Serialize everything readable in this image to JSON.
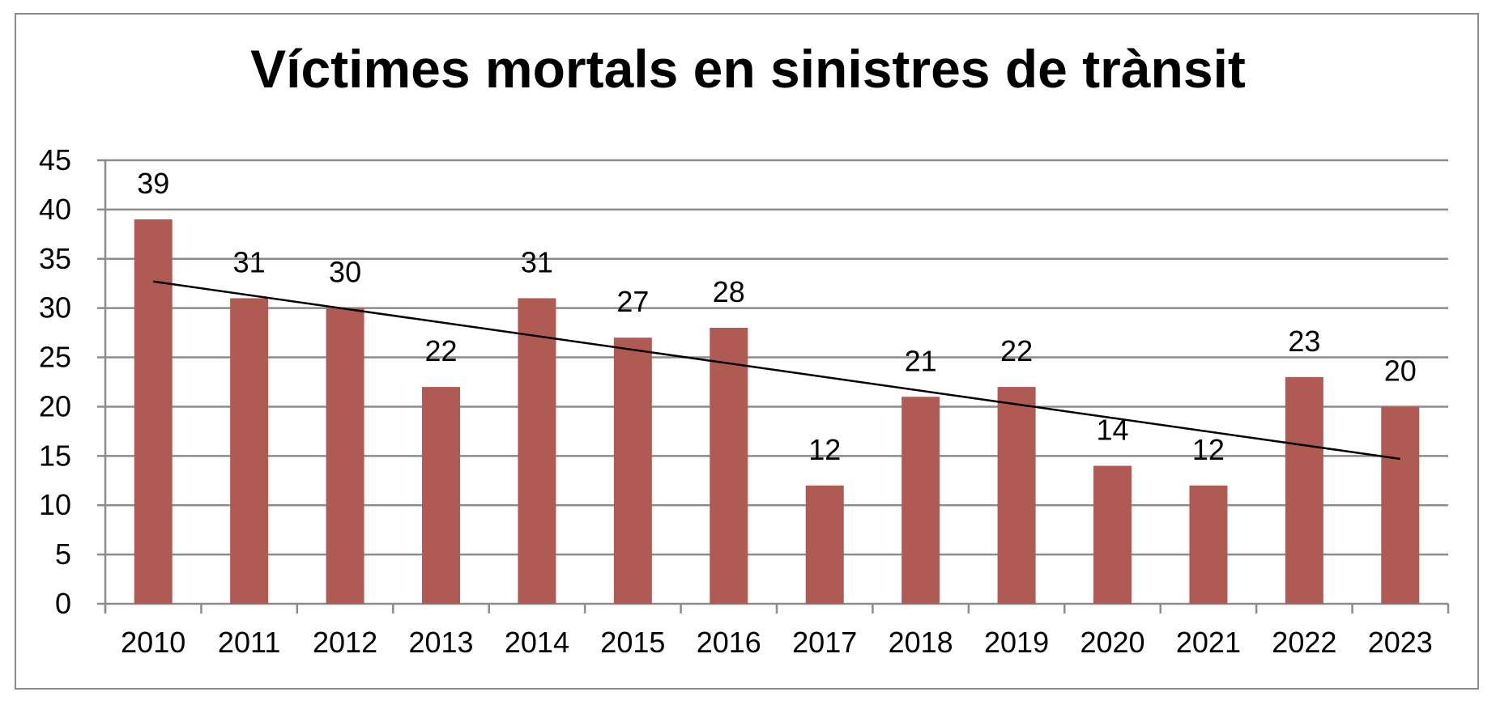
{
  "chart_data": {
    "type": "bar",
    "title": "Víctimes mortals en sinistres de trànsit",
    "xlabel": "",
    "ylabel": "",
    "categories": [
      "2010",
      "2011",
      "2012",
      "2013",
      "2014",
      "2015",
      "2016",
      "2017",
      "2018",
      "2019",
      "2020",
      "2021",
      "2022",
      "2023"
    ],
    "values": [
      39,
      31,
      30,
      22,
      31,
      27,
      28,
      12,
      21,
      22,
      14,
      12,
      23,
      20
    ],
    "ylim": [
      0,
      45
    ],
    "yticks": [
      "0",
      "5",
      "10",
      "15",
      "20",
      "25",
      "30",
      "35",
      "40",
      "45"
    ],
    "grid": true,
    "legend": "none",
    "data_labels": true,
    "trendline": {
      "type": "linear",
      "start": 32.7,
      "end": 14.7
    },
    "colors": {
      "bar": "#b05a54",
      "grid": "#8c8c8c",
      "trendline": "#000000"
    }
  }
}
